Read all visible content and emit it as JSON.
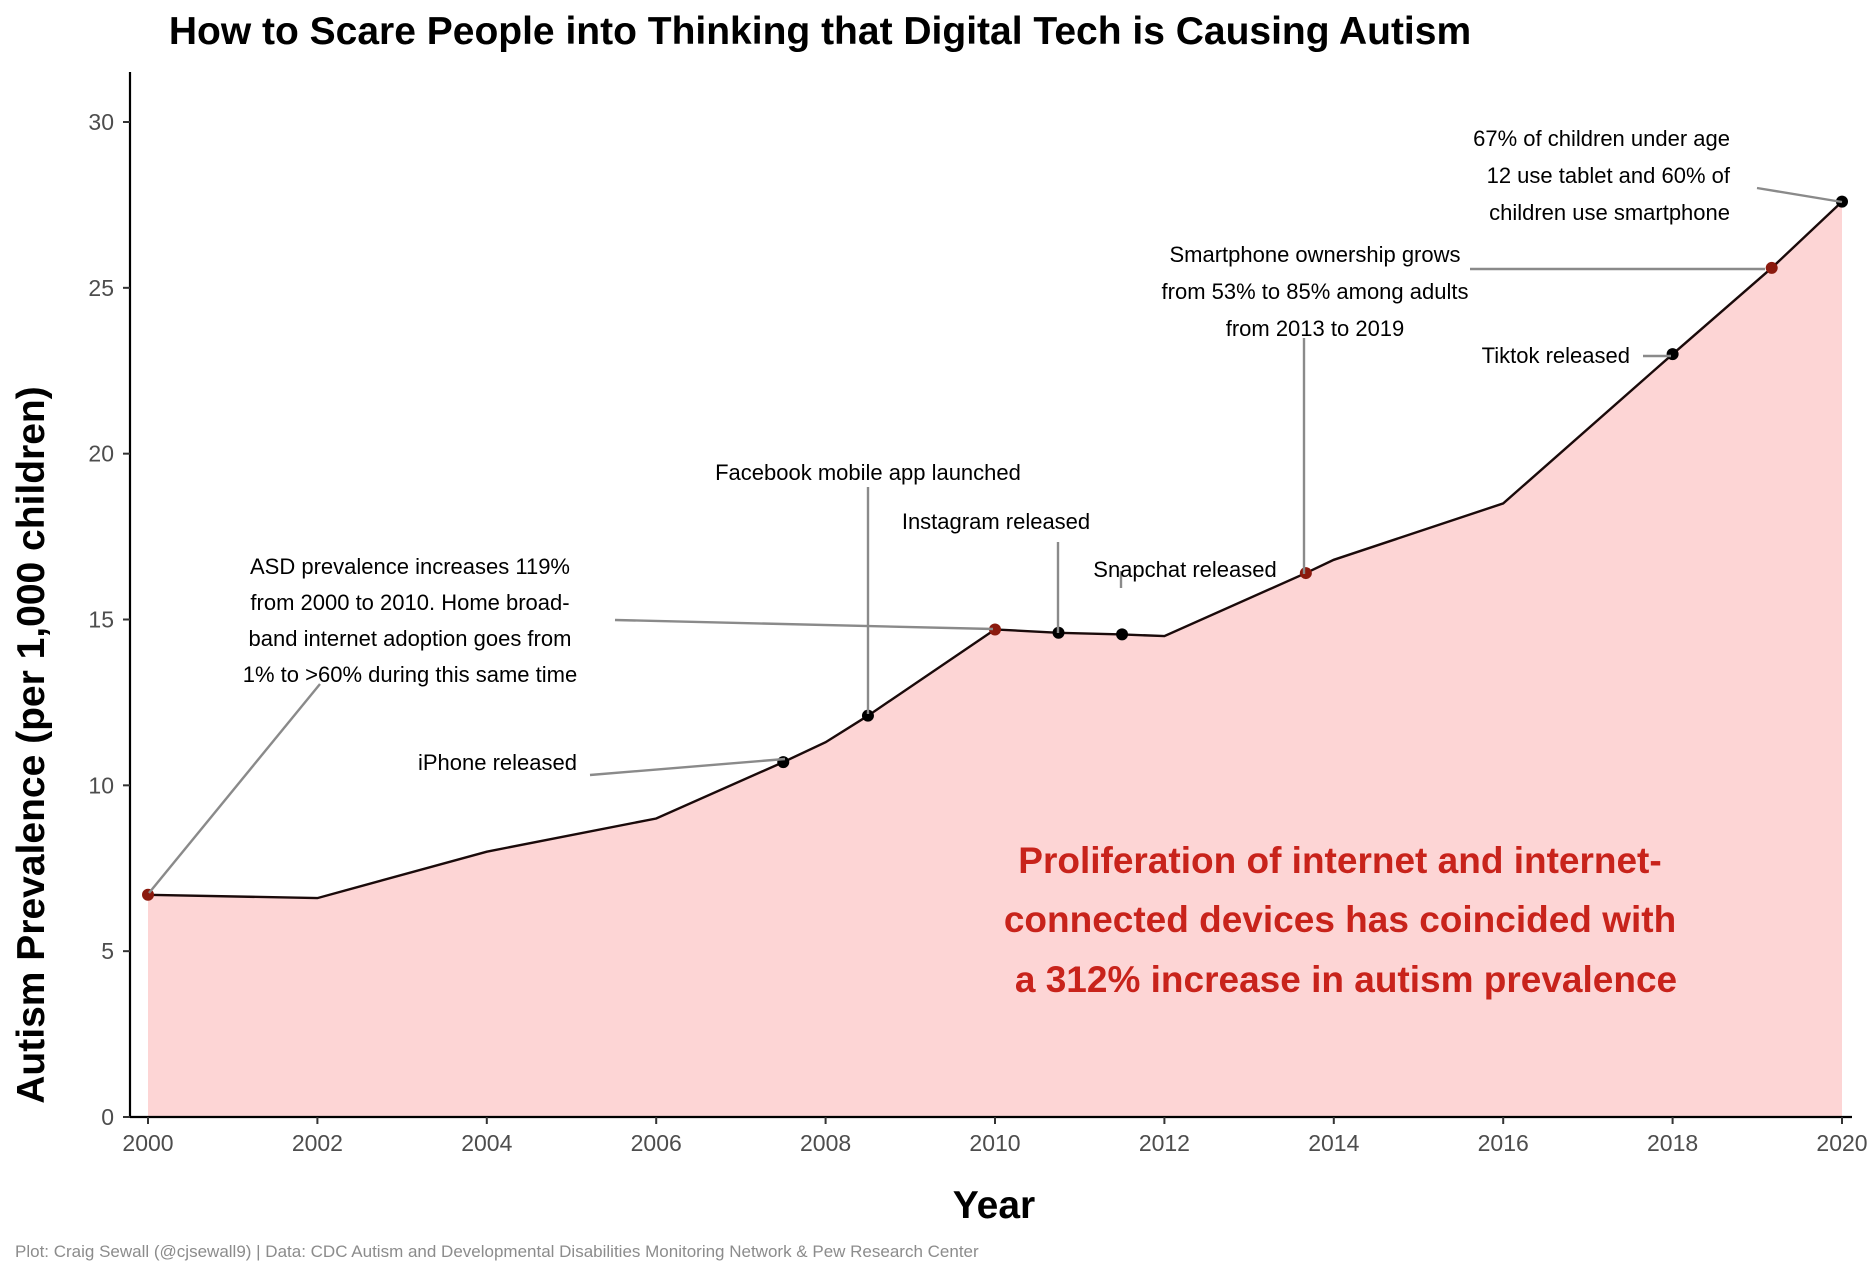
{
  "chart_data": {
    "type": "area",
    "title": "How to Scare People into Thinking that Digital Tech is Causing Autism",
    "xlabel": "Year",
    "ylabel": "Autism Prevalence (per 1,000 children)",
    "xlim": [
      2000,
      2020
    ],
    "ylim": [
      0,
      31.5
    ],
    "x_ticks": [
      "2000",
      "2002",
      "2004",
      "2006",
      "2008",
      "2010",
      "2012",
      "2014",
      "2016",
      "2018",
      "2020"
    ],
    "y_ticks": [
      "0",
      "5",
      "10",
      "15",
      "20",
      "25",
      "30"
    ],
    "grid": false,
    "fill_color": "#fdd5d5",
    "line_color": "#1a0a0a",
    "series": [
      {
        "x": [
          2000,
          2002,
          2004,
          2006,
          2007.5,
          2008,
          2008.5,
          2010,
          2010.75,
          2011.5,
          2012,
          2013.67,
          2014,
          2016,
          2018,
          2019.17,
          2020
        ],
        "values": [
          6.7,
          6.6,
          8.0,
          9.0,
          10.7,
          11.3,
          12.1,
          14.7,
          14.6,
          14.55,
          14.5,
          16.4,
          16.8,
          18.5,
          23.0,
          25.6,
          27.6
        ]
      }
    ],
    "points": [
      {
        "x": 2000,
        "y": 6.7,
        "color": "#8b1a0e"
      },
      {
        "x": 2007.5,
        "y": 10.7,
        "color": "#000000"
      },
      {
        "x": 2008.5,
        "y": 12.1,
        "color": "#000000"
      },
      {
        "x": 2010,
        "y": 14.7,
        "color": "#8b1a0e"
      },
      {
        "x": 2010.75,
        "y": 14.6,
        "color": "#000000"
      },
      {
        "x": 2011.5,
        "y": 14.55,
        "color": "#000000"
      },
      {
        "x": 2013.67,
        "y": 16.4,
        "color": "#8b1a0e"
      },
      {
        "x": 2018,
        "y": 23.0,
        "color": "#000000"
      },
      {
        "x": 2019.17,
        "y": 25.6,
        "color": "#8b1a0e"
      },
      {
        "x": 2020,
        "y": 27.6,
        "color": "#000000"
      }
    ],
    "annotations": [
      {
        "lines": [
          "ASD prevalence increases 119%",
          "from 2000 to 2010. Home broad-",
          "band internet adoption goes from",
          "1% to >60% during this same time"
        ]
      },
      {
        "lines": [
          "iPhone released"
        ]
      },
      {
        "lines": [
          "Facebook mobile app launched"
        ]
      },
      {
        "lines": [
          "Instagram released"
        ]
      },
      {
        "lines": [
          "Snapchat released"
        ]
      },
      {
        "lines": [
          "Smartphone ownership grows",
          "from 53% to 85% among adults",
          "from 2013 to 2019"
        ]
      },
      {
        "lines": [
          "Tiktok released"
        ]
      },
      {
        "lines": [
          "67% of children under age",
          "12 use tablet and 60% of",
          "children use smartphone"
        ]
      }
    ],
    "callout": [
      "Proliferation of internet and internet-",
      "connected devices has coincided with",
      "a 312% increase in autism prevalence"
    ],
    "callout_color": "#c8231b",
    "caption": "Plot: Craig Sewall (@cjsewall9) | Data: CDC Autism and Developmental Disabilities Monitoring Network & Pew Research Center"
  }
}
